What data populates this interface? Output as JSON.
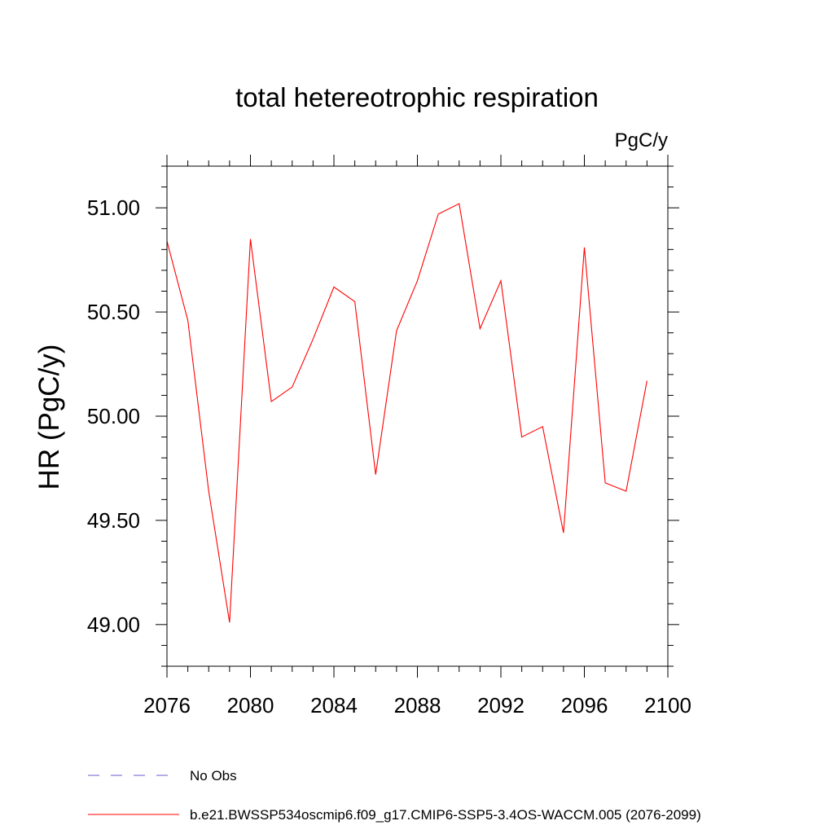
{
  "chart_data": {
    "type": "line",
    "title": "total hetereotrophic respiration",
    "units": "PgC/y",
    "ylabel": "HR  (PgC/y)",
    "xlabel": "",
    "xlim": [
      2076,
      2100
    ],
    "ylim": [
      48.8,
      51.2
    ],
    "xticks": [
      2076,
      2080,
      2084,
      2088,
      2092,
      2096,
      2100
    ],
    "yticks": [
      49.0,
      49.5,
      50.0,
      50.5,
      51.0
    ],
    "ytick_labels": [
      "49.00",
      "49.50",
      "50.00",
      "50.50",
      "51.00"
    ],
    "x": [
      2076,
      2077,
      2078,
      2079,
      2080,
      2081,
      2082,
      2083,
      2084,
      2085,
      2086,
      2087,
      2088,
      2089,
      2090,
      2091,
      2092,
      2093,
      2094,
      2095,
      2096,
      2097,
      2098,
      2099
    ],
    "series": [
      {
        "name": "b.e21.BWSSP534oscmip6.f09_g17.CMIP6-SSP5-3.4OS-WACCM.005 (2076-2099)",
        "color": "#ff0000",
        "values": [
          50.84,
          50.46,
          49.64,
          49.01,
          50.85,
          50.07,
          50.14,
          50.37,
          50.62,
          50.55,
          49.72,
          50.41,
          50.65,
          50.97,
          51.02,
          50.42,
          50.65,
          49.9,
          49.95,
          49.44,
          50.81,
          49.68,
          49.64,
          50.17
        ]
      }
    ],
    "legend": {
      "placement": "bottom",
      "entries": [
        {
          "label": "No Obs",
          "color": "#6a5acd",
          "style": "dashed"
        },
        {
          "label": "b.e21.BWSSP534oscmip6.f09_g17.CMIP6-SSP5-3.4OS-WACCM.005 (2076-2099)",
          "color": "#ff0000",
          "style": "solid"
        }
      ]
    }
  }
}
